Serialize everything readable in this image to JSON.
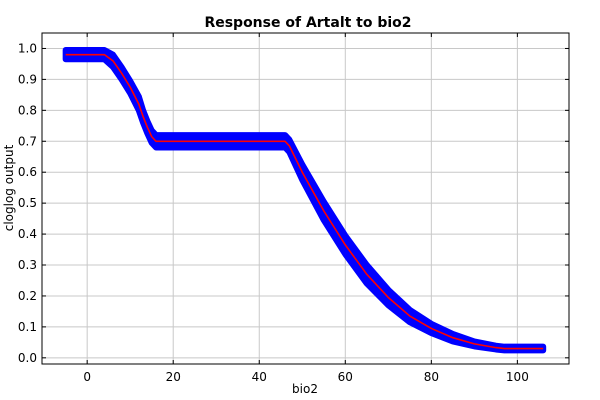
{
  "chart_data": {
    "type": "line",
    "title": "Response of Artalt to bio2",
    "xlabel": "bio2",
    "ylabel": "cloglog output",
    "xlim": [
      -10.5,
      112
    ],
    "ylim": [
      -0.02,
      1.05
    ],
    "xticks": [
      0,
      20,
      40,
      60,
      80,
      100
    ],
    "yticks": [
      0.0,
      0.1,
      0.2,
      0.3,
      0.4,
      0.5,
      0.6,
      0.7,
      0.8,
      0.9,
      1.0
    ],
    "ytick_labels": [
      "0.0",
      "0.1",
      "0.2",
      "0.3",
      "0.4",
      "0.5",
      "0.6",
      "0.7",
      "0.8",
      "0.9",
      "1.0"
    ],
    "grid": true,
    "colors": {
      "band": "#0000ff",
      "mean": "#ff0000"
    },
    "series": [
      {
        "role": "mean",
        "x": [
          -5,
          4,
          6,
          8,
          10,
          12,
          13,
          14,
          15,
          16,
          46,
          47,
          50,
          55,
          60,
          65,
          70,
          75,
          80,
          85,
          90,
          95,
          97,
          106
        ],
        "y": [
          0.98,
          0.98,
          0.96,
          0.92,
          0.875,
          0.82,
          0.78,
          0.745,
          0.715,
          0.7,
          0.7,
          0.685,
          0.6,
          0.475,
          0.365,
          0.27,
          0.195,
          0.135,
          0.095,
          0.065,
          0.045,
          0.033,
          0.03,
          0.03
        ]
      },
      {
        "role": "upper",
        "x": [
          -5,
          4,
          6,
          8,
          10,
          12,
          13,
          14,
          15,
          16,
          46,
          47,
          50,
          55,
          60,
          65,
          70,
          75,
          80,
          85,
          90,
          95,
          97,
          106
        ],
        "y": [
          0.995,
          0.995,
          0.98,
          0.94,
          0.895,
          0.845,
          0.8,
          0.765,
          0.735,
          0.72,
          0.72,
          0.705,
          0.625,
          0.505,
          0.395,
          0.3,
          0.22,
          0.155,
          0.11,
          0.077,
          0.053,
          0.039,
          0.036,
          0.036
        ]
      },
      {
        "role": "lower",
        "x": [
          -5,
          4,
          6,
          8,
          10,
          12,
          13,
          14,
          15,
          16,
          46,
          47,
          50,
          55,
          60,
          65,
          70,
          75,
          80,
          85,
          90,
          95,
          97,
          106
        ],
        "y": [
          0.965,
          0.965,
          0.94,
          0.9,
          0.855,
          0.8,
          0.76,
          0.725,
          0.695,
          0.68,
          0.68,
          0.665,
          0.575,
          0.445,
          0.335,
          0.24,
          0.17,
          0.115,
          0.08,
          0.053,
          0.037,
          0.027,
          0.024,
          0.024
        ]
      }
    ]
  }
}
